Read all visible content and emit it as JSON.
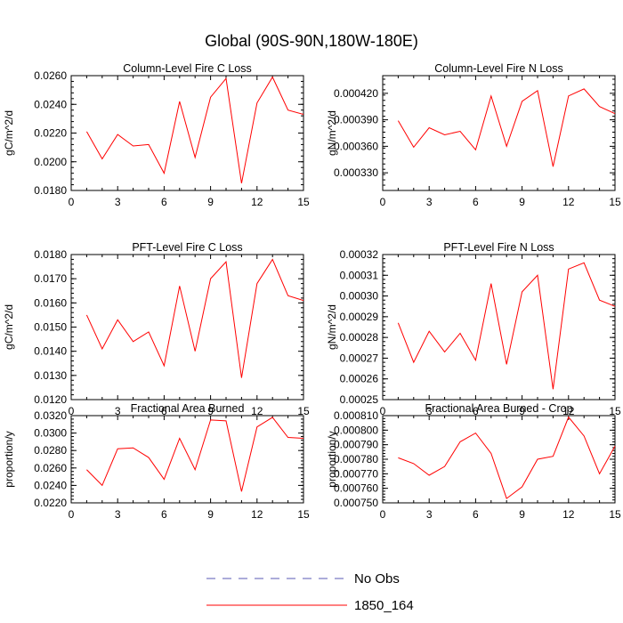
{
  "figure": {
    "title": "Global (90S-90N,180W-180E)"
  },
  "chart_data": [
    {
      "type": "line",
      "title": "Column-Level Fire C Loss",
      "xlabel": "",
      "ylabel": "gC/m^2/d",
      "xlim": [
        0,
        15
      ],
      "ylim": [
        0.018,
        0.026
      ],
      "xticks": [
        0,
        3,
        6,
        9,
        12,
        15
      ],
      "yticks": [
        "0.0180",
        "0.0200",
        "0.0220",
        "0.0240",
        "0.0260"
      ],
      "x": [
        1,
        2,
        3,
        4,
        5,
        6,
        7,
        8,
        9,
        10,
        11,
        12,
        13,
        14,
        15
      ],
      "series": [
        {
          "name": "1850_164",
          "color": "#ff0000",
          "values": [
            0.0221,
            0.0202,
            0.0219,
            0.0211,
            0.0212,
            0.0192,
            0.0242,
            0.0203,
            0.0245,
            0.0258,
            0.0185,
            0.0241,
            0.0259,
            0.0236,
            0.0233
          ]
        }
      ]
    },
    {
      "type": "line",
      "title": "Column-Level Fire N Loss",
      "xlabel": "",
      "ylabel": "gN/m^2/d",
      "xlim": [
        0,
        15
      ],
      "ylim": [
        0.00031,
        0.00044
      ],
      "xticks": [
        0,
        3,
        6,
        9,
        12,
        15
      ],
      "yticks": [
        "0.000330",
        "0.000360",
        "0.000390",
        "0.000420"
      ],
      "x": [
        1,
        2,
        3,
        4,
        5,
        6,
        7,
        8,
        9,
        10,
        11,
        12,
        13,
        14,
        15
      ],
      "series": [
        {
          "name": "1850_164",
          "color": "#ff0000",
          "values": [
            0.000389,
            0.000359,
            0.000381,
            0.000373,
            0.000377,
            0.000356,
            0.000417,
            0.00036,
            0.000411,
            0.000423,
            0.000337,
            0.000417,
            0.000425,
            0.000405,
            0.000397
          ]
        }
      ]
    },
    {
      "type": "line",
      "title": "PFT-Level Fire C Loss",
      "xlabel": "",
      "ylabel": "gC/m^2/d",
      "xlim": [
        0,
        15
      ],
      "ylim": [
        0.012,
        0.018
      ],
      "xticks": [
        0,
        3,
        6,
        9,
        12,
        15
      ],
      "yticks": [
        "0.0120",
        "0.0130",
        "0.0140",
        "0.0150",
        "0.0160",
        "0.0170",
        "0.0180"
      ],
      "x": [
        1,
        2,
        3,
        4,
        5,
        6,
        7,
        8,
        9,
        10,
        11,
        12,
        13,
        14,
        15
      ],
      "series": [
        {
          "name": "1850_164",
          "color": "#ff0000",
          "values": [
            0.0155,
            0.0141,
            0.0153,
            0.0144,
            0.0148,
            0.0134,
            0.0167,
            0.014,
            0.017,
            0.0177,
            0.0129,
            0.0168,
            0.0178,
            0.0163,
            0.0161
          ]
        }
      ]
    },
    {
      "type": "line",
      "title": "PFT-Level Fire N Loss",
      "xlabel": "",
      "ylabel": "gN/m^2/d",
      "xlim": [
        0,
        15
      ],
      "ylim": [
        0.00025,
        0.00032
      ],
      "xticks": [
        0,
        3,
        6,
        9,
        12,
        15
      ],
      "yticks": [
        "0.00025",
        "0.00026",
        "0.00027",
        "0.00028",
        "0.00029",
        "0.00030",
        "0.00031",
        "0.00032"
      ],
      "x": [
        1,
        2,
        3,
        4,
        5,
        6,
        7,
        8,
        9,
        10,
        11,
        12,
        13,
        14,
        15
      ],
      "series": [
        {
          "name": "1850_164",
          "color": "#ff0000",
          "values": [
            0.000287,
            0.000268,
            0.000283,
            0.000273,
            0.000282,
            0.000269,
            0.000306,
            0.000267,
            0.000302,
            0.00031,
            0.000255,
            0.000313,
            0.000316,
            0.000298,
            0.000295
          ]
        }
      ]
    },
    {
      "type": "line",
      "title": "Fractional Area Burned",
      "xlabel": "",
      "ylabel": "proportion/y",
      "xlim": [
        0,
        15
      ],
      "ylim": [
        0.022,
        0.032
      ],
      "xticks": [
        0,
        3,
        6,
        9,
        12,
        15
      ],
      "yticks": [
        "0.0220",
        "0.0240",
        "0.0260",
        "0.0280",
        "0.0300",
        "0.0320"
      ],
      "x": [
        1,
        2,
        3,
        4,
        5,
        6,
        7,
        8,
        9,
        10,
        11,
        12,
        13,
        14,
        15
      ],
      "series": [
        {
          "name": "1850_164",
          "color": "#ff0000",
          "values": [
            0.0258,
            0.024,
            0.0282,
            0.0283,
            0.0272,
            0.0247,
            0.0294,
            0.0258,
            0.0315,
            0.0314,
            0.0233,
            0.0307,
            0.0318,
            0.0295,
            0.0294
          ]
        }
      ]
    },
    {
      "type": "line",
      "title": "Fractional Area Burned - Crop",
      "xlabel": "",
      "ylabel": "proportion/y",
      "xlim": [
        0,
        15
      ],
      "ylim": [
        0.00075,
        0.00081
      ],
      "xticks": [
        0,
        3,
        6,
        9,
        12,
        15
      ],
      "yticks": [
        "0.000750",
        "0.000760",
        "0.000770",
        "0.000780",
        "0.000790",
        "0.000800",
        "0.000810"
      ],
      "x": [
        1,
        2,
        3,
        4,
        5,
        6,
        7,
        8,
        9,
        10,
        11,
        12,
        13,
        14,
        15
      ],
      "series": [
        {
          "name": "1850_164",
          "color": "#ff0000",
          "values": [
            0.000781,
            0.000777,
            0.000769,
            0.000775,
            0.000792,
            0.000798,
            0.000784,
            0.000753,
            0.000761,
            0.00078,
            0.000782,
            0.000809,
            0.000796,
            0.00077,
            0.000789
          ]
        }
      ]
    }
  ],
  "legend": {
    "placement": "bottom-center",
    "items": [
      {
        "label": "No Obs",
        "color": "#5a5ab4",
        "style": "dashed"
      },
      {
        "label": "1850_164",
        "color": "#ff0000",
        "style": "solid"
      }
    ]
  }
}
